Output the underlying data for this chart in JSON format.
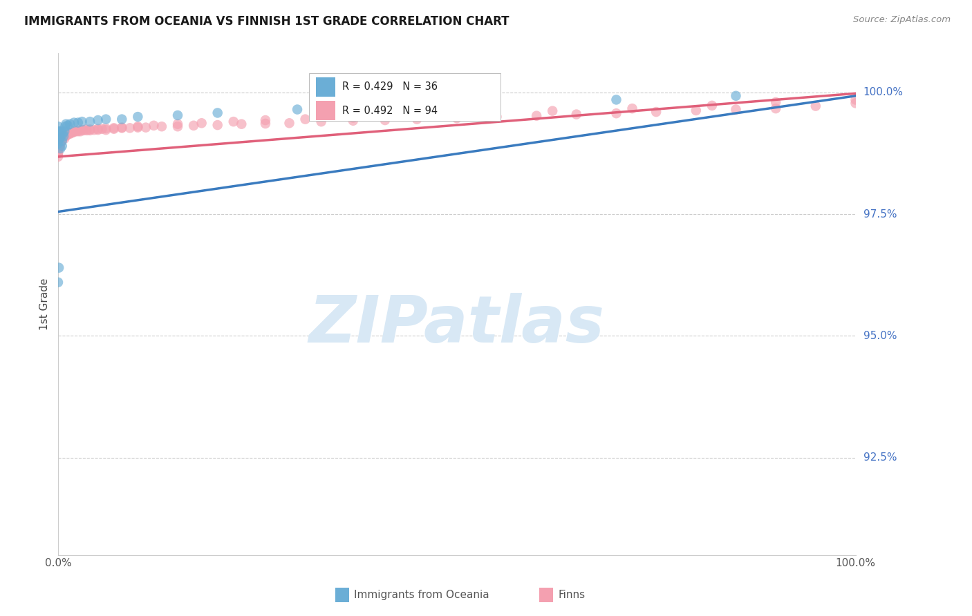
{
  "title": "IMMIGRANTS FROM OCEANIA VS FINNISH 1ST GRADE CORRELATION CHART",
  "source": "Source: ZipAtlas.com",
  "ylabel": "1st Grade",
  "y_ticks": [
    1.0,
    0.975,
    0.95,
    0.925
  ],
  "y_tick_labels": [
    "100.0%",
    "97.5%",
    "95.0%",
    "92.5%"
  ],
  "x_range": [
    0.0,
    1.0
  ],
  "y_range": [
    0.905,
    1.008
  ],
  "blue_r": "0.429",
  "blue_n": "36",
  "pink_r": "0.492",
  "pink_n": "94",
  "blue_color": "#6baed6",
  "pink_color": "#f4a0b0",
  "blue_line_color": "#3a7bbf",
  "pink_line_color": "#e0607a",
  "blue_line_x": [
    0.0,
    1.0
  ],
  "blue_line_y": [
    0.9755,
    0.9993
  ],
  "pink_line_x": [
    0.0,
    1.0
  ],
  "pink_line_y": [
    0.9868,
    0.9998
  ],
  "watermark_text": "ZIPatlas",
  "watermark_color": "#d8e8f5",
  "bottom_legend_blue_label": "Immigrants from Oceania",
  "bottom_legend_pink_label": "Finns",
  "title_color": "#1a1a1a",
  "source_color": "#888888",
  "ytick_color": "#4472c4",
  "xtick_color": "#555555",
  "grid_color": "#cccccc",
  "scatter_size": 110,
  "scatter_alpha": 0.65,
  "blue_scatter_x": [
    0.0,
    0.0,
    0.0,
    0.0,
    0.001,
    0.001,
    0.002,
    0.002,
    0.003,
    0.003,
    0.004,
    0.005,
    0.005,
    0.006,
    0.007,
    0.008,
    0.009,
    0.01,
    0.012,
    0.015,
    0.02,
    0.025,
    0.03,
    0.04,
    0.05,
    0.06,
    0.08,
    0.1,
    0.15,
    0.2,
    0.3,
    0.5,
    0.7,
    0.85,
    0.0,
    0.001
  ],
  "blue_scatter_y": [
    0.993,
    0.9915,
    0.9905,
    0.9895,
    0.992,
    0.9905,
    0.992,
    0.9905,
    0.991,
    0.9885,
    0.992,
    0.99,
    0.989,
    0.9915,
    0.991,
    0.992,
    0.993,
    0.9935,
    0.9932,
    0.9935,
    0.9938,
    0.9938,
    0.994,
    0.994,
    0.9943,
    0.9945,
    0.9945,
    0.995,
    0.9953,
    0.9958,
    0.9965,
    0.9975,
    0.9985,
    0.9993,
    0.961,
    0.964
  ],
  "pink_scatter_x": [
    0.0,
    0.0,
    0.0,
    0.0,
    0.0,
    0.001,
    0.001,
    0.002,
    0.002,
    0.003,
    0.003,
    0.004,
    0.005,
    0.006,
    0.007,
    0.008,
    0.009,
    0.01,
    0.011,
    0.013,
    0.015,
    0.017,
    0.019,
    0.022,
    0.025,
    0.028,
    0.032,
    0.036,
    0.04,
    0.045,
    0.05,
    0.055,
    0.06,
    0.07,
    0.08,
    0.09,
    0.1,
    0.11,
    0.13,
    0.15,
    0.17,
    0.2,
    0.23,
    0.26,
    0.29,
    0.33,
    0.37,
    0.41,
    0.45,
    0.5,
    0.55,
    0.6,
    0.65,
    0.7,
    0.75,
    0.8,
    0.85,
    0.9,
    0.95,
    1.0,
    0.0,
    0.0,
    0.001,
    0.002,
    0.003,
    0.004,
    0.005,
    0.007,
    0.01,
    0.015,
    0.02,
    0.025,
    0.03,
    0.035,
    0.04,
    0.05,
    0.06,
    0.07,
    0.08,
    0.1,
    0.12,
    0.15,
    0.18,
    0.22,
    0.26,
    0.31,
    0.37,
    0.44,
    0.52,
    0.62,
    0.72,
    0.82,
    0.9,
    1.0
  ],
  "pink_scatter_y": [
    0.9875,
    0.9885,
    0.9895,
    0.989,
    0.988,
    0.9885,
    0.9895,
    0.989,
    0.99,
    0.9895,
    0.9905,
    0.9905,
    0.9905,
    0.991,
    0.991,
    0.9905,
    0.991,
    0.9912,
    0.9912,
    0.9915,
    0.9915,
    0.9917,
    0.9918,
    0.992,
    0.992,
    0.992,
    0.9922,
    0.9922,
    0.9922,
    0.9923,
    0.9923,
    0.9925,
    0.9923,
    0.9925,
    0.9927,
    0.9927,
    0.9928,
    0.9928,
    0.993,
    0.993,
    0.9932,
    0.9933,
    0.9935,
    0.9936,
    0.9937,
    0.994,
    0.9942,
    0.9943,
    0.9945,
    0.9947,
    0.995,
    0.9952,
    0.9955,
    0.9957,
    0.996,
    0.9963,
    0.9965,
    0.9967,
    0.9972,
    0.9978,
    0.9875,
    0.9868,
    0.9888,
    0.9892,
    0.9898,
    0.99,
    0.9903,
    0.9908,
    0.9912,
    0.9917,
    0.992,
    0.9922,
    0.9923,
    0.9924,
    0.9924,
    0.9925,
    0.9926,
    0.9927,
    0.9928,
    0.993,
    0.9932,
    0.9935,
    0.9937,
    0.994,
    0.9943,
    0.9945,
    0.9948,
    0.9952,
    0.9957,
    0.9962,
    0.9967,
    0.9973,
    0.998,
    0.9985
  ]
}
